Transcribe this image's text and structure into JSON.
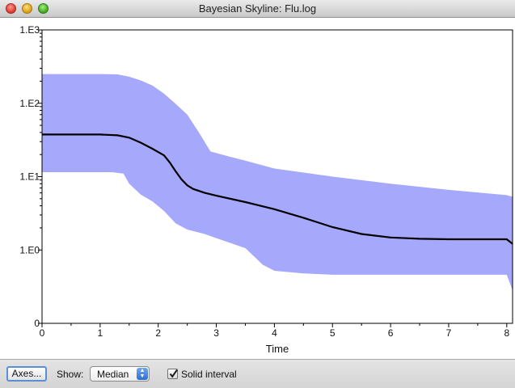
{
  "window": {
    "title": "Bayesian Skyline: Flu.log",
    "controls": [
      "close-button",
      "minimize-button",
      "zoom-button"
    ]
  },
  "toolbar": {
    "axes_button": "Axes...",
    "show_label": "Show:",
    "show_selected": "Median",
    "solid_interval_label": "Solid interval",
    "solid_interval_checked": true
  },
  "chart_data": {
    "type": "area",
    "xlabel": "Time",
    "ylabel": "",
    "xlim": [
      0,
      8.1
    ],
    "x_ticks": [
      "0",
      "1",
      "2",
      "3",
      "4",
      "5",
      "6",
      "7",
      "8"
    ],
    "y_ticks": [
      "0",
      "1.E0",
      "1.E1",
      "1.E2",
      "1.E3"
    ],
    "y_scale": "log",
    "grid": false,
    "colors": {
      "band": "#a6a9fb",
      "median": "#000000"
    },
    "series": [
      {
        "role": "median",
        "x": [
          0,
          0.5,
          1.0,
          1.3,
          1.5,
          1.7,
          1.9,
          2.1,
          2.2,
          2.3,
          2.4,
          2.5,
          2.6,
          2.8,
          3.0,
          3.5,
          4.0,
          4.5,
          5.0,
          5.5,
          6.0,
          6.5,
          7.0,
          7.5,
          8.0,
          8.1
        ],
        "y": [
          37.5,
          37.5,
          37.5,
          36.6,
          34,
          29,
          24,
          19.5,
          15.5,
          11.8,
          9.2,
          7.6,
          6.8,
          6.0,
          5.5,
          4.5,
          3.6,
          2.75,
          2.05,
          1.65,
          1.48,
          1.42,
          1.4,
          1.4,
          1.4,
          1.21
        ]
      },
      {
        "role": "upper",
        "x": [
          0,
          0.5,
          1.0,
          1.3,
          1.5,
          1.7,
          1.9,
          2.1,
          2.3,
          2.5,
          2.7,
          2.9,
          3.2,
          3.5,
          4.0,
          5.0,
          6.0,
          7.0,
          8.0,
          8.1
        ],
        "y": [
          250,
          250,
          250,
          248,
          230,
          205,
          175,
          135,
          98,
          70,
          40,
          22,
          19,
          16.5,
          12.9,
          10.0,
          8.0,
          6.6,
          5.6,
          5.3
        ]
      },
      {
        "role": "lower",
        "x": [
          0,
          0.5,
          1.0,
          1.2,
          1.4,
          1.5,
          1.7,
          1.9,
          2.1,
          2.3,
          2.5,
          2.8,
          3.0,
          3.5,
          3.8,
          4.0,
          4.5,
          5.0,
          6.0,
          7.0,
          8.0,
          8.1
        ],
        "y": [
          11.5,
          11.5,
          11.5,
          11.5,
          11.0,
          8.0,
          5.7,
          4.6,
          3.4,
          2.3,
          1.9,
          1.65,
          1.45,
          1.06,
          0.63,
          0.52,
          0.48,
          0.46,
          0.46,
          0.46,
          0.46,
          0.28
        ]
      }
    ]
  }
}
